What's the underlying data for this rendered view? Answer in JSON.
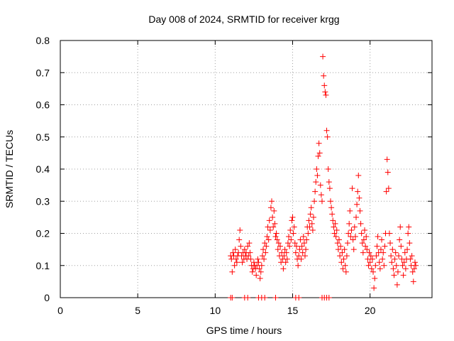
{
  "chart_data": {
    "type": "scatter",
    "title": "Day 008 of 2024, SRMTID for receiver krgg",
    "xlabel": "GPS time / hours",
    "ylabel": "SRMTID / TECUs",
    "xlim": [
      0,
      24
    ],
    "ylim": [
      0,
      0.8
    ],
    "xticks": [
      0,
      5,
      10,
      15,
      20
    ],
    "yticks": [
      0,
      0.1,
      0.2,
      0.3,
      0.4,
      0.5,
      0.6,
      0.7,
      0.8
    ],
    "grid": true,
    "marker": "+",
    "color": "#ff0000",
    "series": [
      {
        "name": "SRMTID",
        "points": [
          [
            11.0,
            0.13
          ],
          [
            11.05,
            0.12
          ],
          [
            11.1,
            0.08
          ],
          [
            11.15,
            0.14
          ],
          [
            11.2,
            0.13
          ],
          [
            11.25,
            0.1
          ],
          [
            11.3,
            0.15
          ],
          [
            11.35,
            0.12
          ],
          [
            11.4,
            0.11
          ],
          [
            11.45,
            0.13
          ],
          [
            11.5,
            0.14
          ],
          [
            11.55,
            0.18
          ],
          [
            11.6,
            0.21
          ],
          [
            11.65,
            0.16
          ],
          [
            11.7,
            0.13
          ],
          [
            11.75,
            0.11
          ],
          [
            11.8,
            0.14
          ],
          [
            11.85,
            0.12
          ],
          [
            11.9,
            0.15
          ],
          [
            11.95,
            0.13
          ],
          [
            12.0,
            0.14
          ],
          [
            12.05,
            0.12
          ],
          [
            12.1,
            0.16
          ],
          [
            12.15,
            0.13
          ],
          [
            12.2,
            0.17
          ],
          [
            12.25,
            0.14
          ],
          [
            12.3,
            0.12
          ],
          [
            12.35,
            0.1
          ],
          [
            12.4,
            0.08
          ],
          [
            12.45,
            0.09
          ],
          [
            12.5,
            0.11
          ],
          [
            12.55,
            0.1
          ],
          [
            12.6,
            0.09
          ],
          [
            12.65,
            0.07
          ],
          [
            12.7,
            0.1
          ],
          [
            12.75,
            0.12
          ],
          [
            12.8,
            0.11
          ],
          [
            12.85,
            0.09
          ],
          [
            12.9,
            0.06
          ],
          [
            12.95,
            0.08
          ],
          [
            13.0,
            0.1
          ],
          [
            13.05,
            0.13
          ],
          [
            13.1,
            0.15
          ],
          [
            13.15,
            0.12
          ],
          [
            13.2,
            0.17
          ],
          [
            13.25,
            0.14
          ],
          [
            13.3,
            0.16
          ],
          [
            13.35,
            0.19
          ],
          [
            13.4,
            0.22
          ],
          [
            13.45,
            0.18
          ],
          [
            13.5,
            0.24
          ],
          [
            13.55,
            0.21
          ],
          [
            13.6,
            0.28
          ],
          [
            13.65,
            0.3
          ],
          [
            13.7,
            0.25
          ],
          [
            13.75,
            0.22
          ],
          [
            13.8,
            0.27
          ],
          [
            13.85,
            0.23
          ],
          [
            13.9,
            0.19
          ],
          [
            13.95,
            0.2
          ],
          [
            14.0,
            0.18
          ],
          [
            14.05,
            0.15
          ],
          [
            14.1,
            0.17
          ],
          [
            14.15,
            0.13
          ],
          [
            14.2,
            0.16
          ],
          [
            14.25,
            0.11
          ],
          [
            14.3,
            0.14
          ],
          [
            14.35,
            0.12
          ],
          [
            14.4,
            0.09
          ],
          [
            14.45,
            0.13
          ],
          [
            14.5,
            0.15
          ],
          [
            14.55,
            0.11
          ],
          [
            14.6,
            0.14
          ],
          [
            14.65,
            0.12
          ],
          [
            14.7,
            0.17
          ],
          [
            14.75,
            0.19
          ],
          [
            14.8,
            0.16
          ],
          [
            14.85,
            0.21
          ],
          [
            14.9,
            0.18
          ],
          [
            14.95,
            0.24
          ],
          [
            15.0,
            0.25
          ],
          [
            15.05,
            0.2
          ],
          [
            15.1,
            0.22
          ],
          [
            15.15,
            0.17
          ],
          [
            15.2,
            0.14
          ],
          [
            15.25,
            0.16
          ],
          [
            15.3,
            0.12
          ],
          [
            15.35,
            0.1
          ],
          [
            15.4,
            0.13
          ],
          [
            15.45,
            0.15
          ],
          [
            15.5,
            0.18
          ],
          [
            15.55,
            0.12
          ],
          [
            15.6,
            0.16
          ],
          [
            15.65,
            0.14
          ],
          [
            15.7,
            0.19
          ],
          [
            15.75,
            0.17
          ],
          [
            15.8,
            0.13
          ],
          [
            15.85,
            0.15
          ],
          [
            15.9,
            0.18
          ],
          [
            15.95,
            0.22
          ],
          [
            16.0,
            0.2
          ],
          [
            16.05,
            0.24
          ],
          [
            16.1,
            0.22
          ],
          [
            16.15,
            0.26
          ],
          [
            16.2,
            0.28
          ],
          [
            16.25,
            0.23
          ],
          [
            16.3,
            0.21
          ],
          [
            16.35,
            0.25
          ],
          [
            16.4,
            0.3
          ],
          [
            16.45,
            0.33
          ],
          [
            16.5,
            0.36
          ],
          [
            16.55,
            0.4
          ],
          [
            16.6,
            0.38
          ],
          [
            16.65,
            0.44
          ],
          [
            16.7,
            0.48
          ],
          [
            16.75,
            0.45
          ],
          [
            16.8,
            0.35
          ],
          [
            16.85,
            0.32
          ],
          [
            16.9,
            0.3
          ],
          [
            16.95,
            0.75
          ],
          [
            17.0,
            0.69
          ],
          [
            17.05,
            0.66
          ],
          [
            17.1,
            0.64
          ],
          [
            17.15,
            0.63
          ],
          [
            17.2,
            0.52
          ],
          [
            17.25,
            0.5
          ],
          [
            17.3,
            0.4
          ],
          [
            17.35,
            0.36
          ],
          [
            17.4,
            0.34
          ],
          [
            17.45,
            0.3
          ],
          [
            17.5,
            0.28
          ],
          [
            17.55,
            0.26
          ],
          [
            17.6,
            0.24
          ],
          [
            17.65,
            0.22
          ],
          [
            17.7,
            0.2
          ],
          [
            17.75,
            0.23
          ],
          [
            17.8,
            0.19
          ],
          [
            17.85,
            0.21
          ],
          [
            17.9,
            0.17
          ],
          [
            17.95,
            0.15
          ],
          [
            18.0,
            0.18
          ],
          [
            18.05,
            0.13
          ],
          [
            18.1,
            0.16
          ],
          [
            18.15,
            0.11
          ],
          [
            18.2,
            0.14
          ],
          [
            18.25,
            0.09
          ],
          [
            18.3,
            0.12
          ],
          [
            18.35,
            0.15
          ],
          [
            18.4,
            0.1
          ],
          [
            18.45,
            0.08
          ],
          [
            18.5,
            0.13
          ],
          [
            18.55,
            0.17
          ],
          [
            18.6,
            0.2
          ],
          [
            18.65,
            0.23
          ],
          [
            18.7,
            0.27
          ],
          [
            18.75,
            0.19
          ],
          [
            18.8,
            0.21
          ],
          [
            18.85,
            0.34
          ],
          [
            18.9,
            0.18
          ],
          [
            18.95,
            0.15
          ],
          [
            19.0,
            0.22
          ],
          [
            19.05,
            0.19
          ],
          [
            19.1,
            0.25
          ],
          [
            19.15,
            0.29
          ],
          [
            19.2,
            0.33
          ],
          [
            19.25,
            0.38
          ],
          [
            19.3,
            0.31
          ],
          [
            19.35,
            0.27
          ],
          [
            19.4,
            0.23
          ],
          [
            19.45,
            0.2
          ],
          [
            19.5,
            0.17
          ],
          [
            19.55,
            0.14
          ],
          [
            19.6,
            0.18
          ],
          [
            19.65,
            0.21
          ],
          [
            19.7,
            0.16
          ],
          [
            19.75,
            0.19
          ],
          [
            19.8,
            0.15
          ],
          [
            19.85,
            0.12
          ],
          [
            19.9,
            0.1
          ],
          [
            19.95,
            0.14
          ],
          [
            20.0,
            0.11
          ],
          [
            20.05,
            0.13
          ],
          [
            20.1,
            0.09
          ],
          [
            20.15,
            0.12
          ],
          [
            20.2,
            0.08
          ],
          [
            20.25,
            0.03
          ],
          [
            20.3,
            0.06
          ],
          [
            20.35,
            0.1
          ],
          [
            20.4,
            0.13
          ],
          [
            20.45,
            0.16
          ],
          [
            20.5,
            0.19
          ],
          [
            20.55,
            0.14
          ],
          [
            20.6,
            0.11
          ],
          [
            20.65,
            0.09
          ],
          [
            20.7,
            0.15
          ],
          [
            20.75,
            0.18
          ],
          [
            20.8,
            0.12
          ],
          [
            20.85,
            0.14
          ],
          [
            20.9,
            0.1
          ],
          [
            20.95,
            0.16
          ],
          [
            21.0,
            0.2
          ],
          [
            21.05,
            0.33
          ],
          [
            21.1,
            0.43
          ],
          [
            21.15,
            0.39
          ],
          [
            21.2,
            0.34
          ],
          [
            21.25,
            0.2
          ],
          [
            21.3,
            0.17
          ],
          [
            21.35,
            0.13
          ],
          [
            21.4,
            0.11
          ],
          [
            21.45,
            0.15
          ],
          [
            21.5,
            0.09
          ],
          [
            21.55,
            0.07
          ],
          [
            21.6,
            0.12
          ],
          [
            21.65,
            0.14
          ],
          [
            21.7,
            0.1
          ],
          [
            21.75,
            0.04
          ],
          [
            21.8,
            0.08
          ],
          [
            21.85,
            0.13
          ],
          [
            21.9,
            0.18
          ],
          [
            21.95,
            0.22
          ],
          [
            22.0,
            0.16
          ],
          [
            22.05,
            0.12
          ],
          [
            22.1,
            0.1
          ],
          [
            22.15,
            0.07
          ],
          [
            22.2,
            0.11
          ],
          [
            22.25,
            0.14
          ],
          [
            22.3,
            0.09
          ],
          [
            22.35,
            0.12
          ],
          [
            22.4,
            0.15
          ],
          [
            22.45,
            0.2
          ],
          [
            22.5,
            0.22
          ],
          [
            22.55,
            0.17
          ],
          [
            22.6,
            0.12
          ],
          [
            22.65,
            0.1
          ],
          [
            22.7,
            0.13
          ],
          [
            22.75,
            0.08
          ],
          [
            22.8,
            0.05
          ],
          [
            22.85,
            0.09
          ],
          [
            22.9,
            0.11
          ],
          [
            22.95,
            0.1
          ],
          [
            11.0,
            0.0
          ],
          [
            11.1,
            0.0
          ],
          [
            11.9,
            0.0
          ],
          [
            12.1,
            0.0
          ],
          [
            12.8,
            0.0
          ],
          [
            13.0,
            0.0
          ],
          [
            13.2,
            0.0
          ],
          [
            13.9,
            0.0
          ],
          [
            15.2,
            0.0
          ],
          [
            15.4,
            0.0
          ],
          [
            16.9,
            0.0
          ],
          [
            17.05,
            0.0
          ],
          [
            17.2,
            0.0
          ],
          [
            17.35,
            0.0
          ]
        ]
      }
    ]
  }
}
